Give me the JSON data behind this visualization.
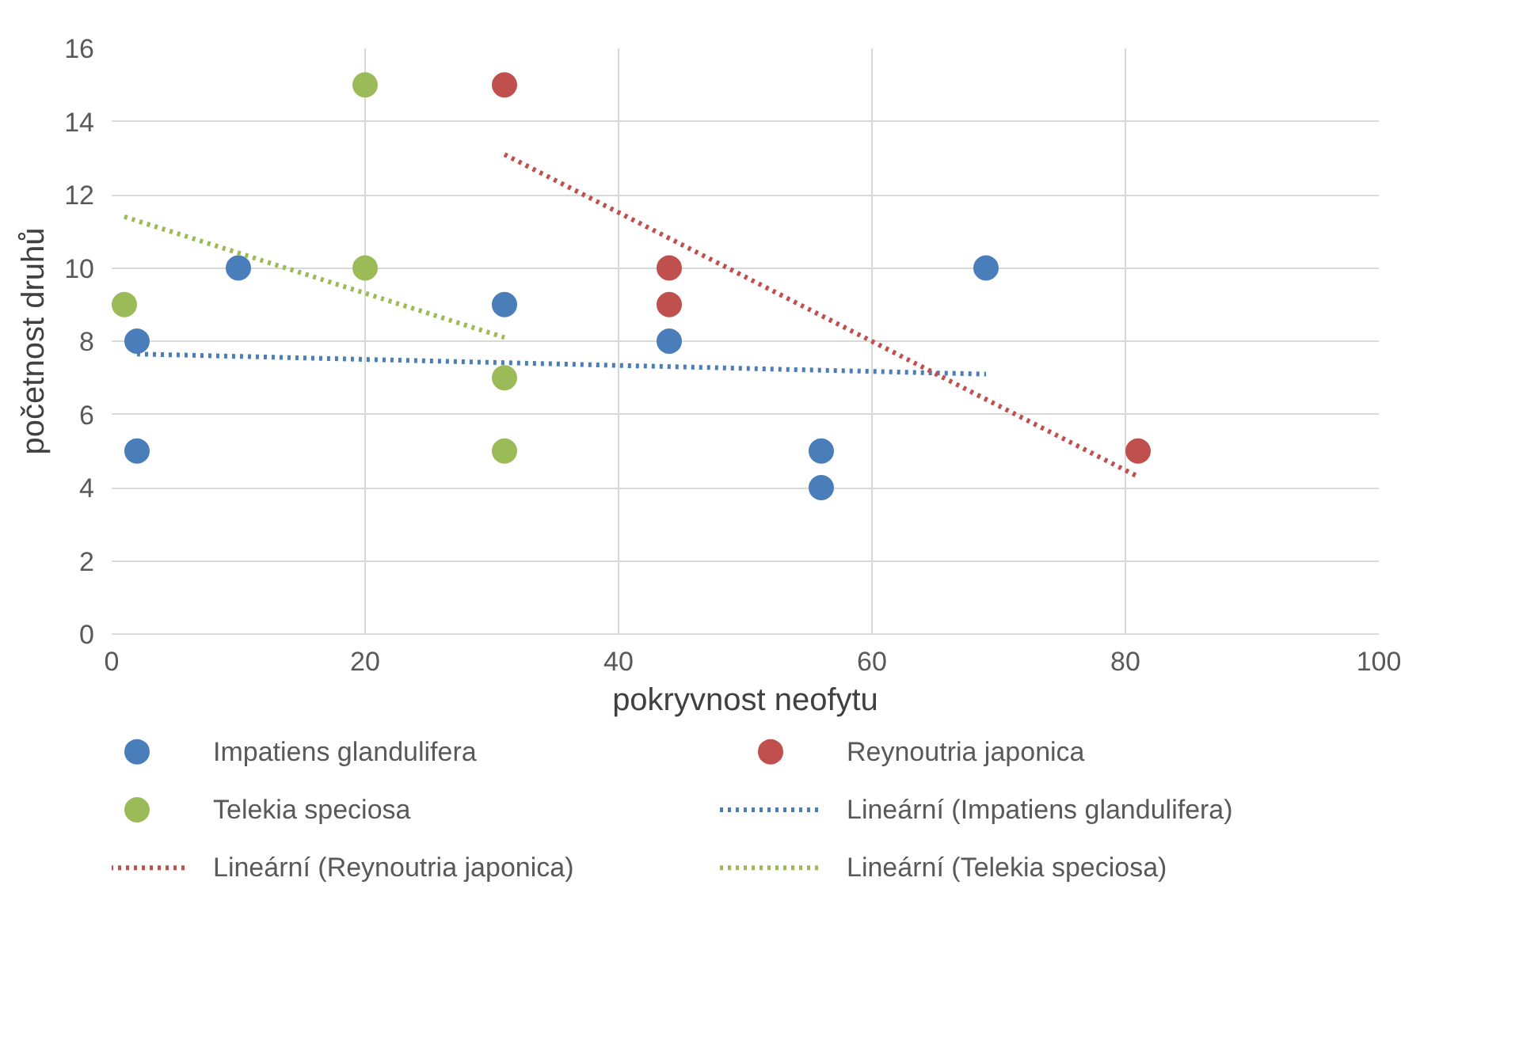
{
  "chart_data": {
    "type": "scatter",
    "xlabel": "pokryvnost neofytu",
    "ylabel": "početnost druhů",
    "xlim": [
      0,
      100
    ],
    "ylim": [
      0,
      16
    ],
    "xticks": [
      0,
      20,
      40,
      60,
      80,
      100
    ],
    "yticks": [
      0,
      2,
      4,
      6,
      8,
      10,
      12,
      14,
      16
    ],
    "grid": true,
    "legend": "bottom",
    "marker": "circle",
    "series": [
      {
        "name": "Impatiens glandulifera",
        "color": "#4a7ebb",
        "x": [
          2,
          2,
          10,
          31,
          44,
          56,
          56,
          69
        ],
        "values": [
          8,
          5,
          10,
          9,
          8,
          5,
          4,
          10
        ]
      },
      {
        "name": "Reynoutria japonica",
        "color": "#c0504d",
        "x": [
          31,
          44,
          44,
          81
        ],
        "values": [
          15,
          10,
          9,
          5
        ]
      },
      {
        "name": "Telekia speciosa",
        "color": "#9bbb59",
        "x": [
          1,
          20,
          20,
          31,
          31
        ],
        "values": [
          9,
          15,
          10,
          7,
          5
        ]
      },
      {
        "name": "Lineární (Impatiens glandulifera)",
        "type": "line",
        "line_style": "dotted",
        "marker": "none",
        "color": "#4a7ebb",
        "x": [
          2,
          69
        ],
        "values": [
          7.65,
          7.1
        ]
      },
      {
        "name": "Lineární (Reynoutria japonica)",
        "type": "line",
        "line_style": "dotted",
        "marker": "none",
        "color": "#c0504d",
        "x": [
          31,
          81
        ],
        "values": [
          13.1,
          4.3
        ]
      },
      {
        "name": "Lineární (Telekia speciosa)",
        "type": "line",
        "line_style": "dotted",
        "marker": "none",
        "color": "#9bbb59",
        "x": [
          1,
          31
        ],
        "values": [
          11.4,
          8.1
        ]
      }
    ]
  }
}
